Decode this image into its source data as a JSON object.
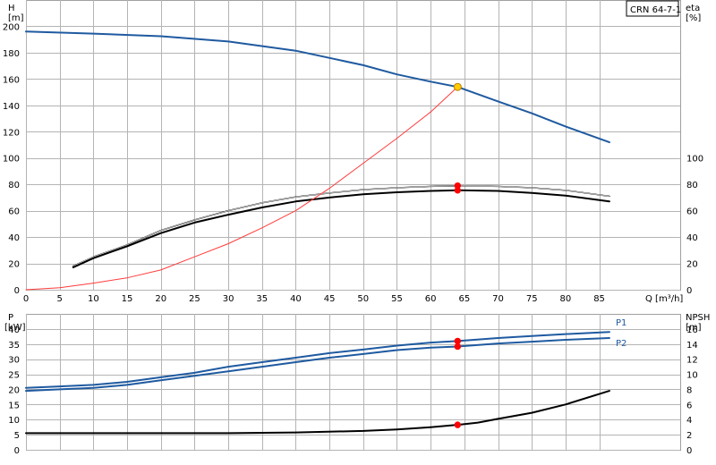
{
  "chart_data": [
    {
      "type": "line",
      "panel": "top",
      "model_label": "CRN 64-7-1",
      "left_axis": {
        "label": "H",
        "unit": "[m]",
        "range": [
          0,
          220
        ],
        "ticks": [
          0,
          20,
          40,
          60,
          80,
          100,
          120,
          140,
          160,
          180,
          200
        ]
      },
      "right_axis": {
        "label": "eta",
        "unit": "[%]",
        "range": [
          0,
          220
        ],
        "ticks": [
          0,
          20,
          40,
          60,
          80,
          100
        ]
      },
      "x_axis": {
        "label": "Q [m³/h]",
        "range": [
          0,
          97
        ],
        "ticks": [
          0,
          5,
          10,
          15,
          20,
          25,
          30,
          35,
          40,
          45,
          50,
          55,
          60,
          65,
          70,
          75,
          80,
          85
        ]
      },
      "grid": true,
      "series": [
        {
          "id": "head",
          "axis": "left",
          "color": "#1f5aa0",
          "x": [
            0,
            10,
            20,
            30,
            40,
            50,
            55,
            60,
            64,
            70,
            75,
            80,
            86.5
          ],
          "y": [
            196,
            194.5,
            192.5,
            188.5,
            181.5,
            170.5,
            163.5,
            158,
            154,
            143,
            134,
            124,
            112
          ]
        },
        {
          "id": "eta-1",
          "axis": "right",
          "color": "#000000",
          "x": [
            7,
            10,
            15,
            20,
            25,
            30,
            35,
            40,
            45,
            50,
            55,
            60,
            64,
            70,
            75,
            80,
            86.5
          ],
          "y": [
            18,
            25,
            34,
            45,
            53,
            60,
            66,
            70.5,
            73.5,
            76,
            77.5,
            78.5,
            79,
            78.5,
            77.5,
            75.5,
            71
          ]
        },
        {
          "id": "eta-2",
          "axis": "right",
          "color": "#000000",
          "x": [
            7,
            10,
            15,
            20,
            25,
            30,
            35,
            40,
            45,
            50,
            55,
            60,
            64,
            70,
            75,
            80,
            86.5
          ],
          "y": [
            17,
            24,
            33,
            43,
            51,
            57,
            62.5,
            67,
            70,
            72.5,
            74,
            75,
            75.5,
            75,
            73.5,
            71.5,
            67
          ]
        },
        {
          "id": "system-curve",
          "axis": "left",
          "color": "#ff3b3b",
          "x": [
            0,
            5,
            10,
            15,
            20,
            25,
            30,
            35,
            40,
            45,
            50,
            55,
            60,
            64
          ],
          "y": [
            0,
            1.5,
            5,
            9,
            15,
            25,
            35,
            47,
            60,
            77,
            96,
            115,
            135,
            154
          ]
        }
      ],
      "markers": [
        {
          "axis": "left",
          "x": 64,
          "y": 154,
          "color": "#ffcc00",
          "stroke": "#c08000"
        },
        {
          "axis": "right",
          "x": 64,
          "y": 79,
          "color": "#ff0000",
          "stroke": "#ff0000"
        },
        {
          "axis": "right",
          "x": 64,
          "y": 75.5,
          "color": "#ff0000",
          "stroke": "#ff0000"
        }
      ]
    },
    {
      "type": "line",
      "panel": "bottom",
      "left_axis": {
        "label": "P",
        "unit": "[kW]",
        "range": [
          0,
          45
        ],
        "ticks": [
          0,
          5,
          10,
          15,
          20,
          25,
          30,
          35,
          40
        ]
      },
      "right_axis": {
        "label": "NPSH",
        "unit": "[m]",
        "range": [
          0,
          18
        ],
        "ticks": [
          0,
          2,
          4,
          6,
          8,
          10,
          12,
          14,
          16
        ]
      },
      "x_axis": {
        "range": [
          0,
          97
        ],
        "ticks": [
          0,
          5,
          10,
          15,
          20,
          25,
          30,
          35,
          40,
          45,
          50,
          55,
          60,
          65,
          70,
          75,
          80,
          85
        ]
      },
      "grid": true,
      "series": [
        {
          "id": "P1",
          "name": "P1",
          "axis": "left",
          "color": "#1f5aa0",
          "x": [
            0,
            5,
            10,
            15,
            20,
            25,
            30,
            35,
            40,
            45,
            50,
            55,
            60,
            64,
            70,
            75,
            80,
            86.5
          ],
          "y": [
            20.5,
            21,
            21.5,
            22.5,
            24,
            25.5,
            27.5,
            29,
            30.5,
            32,
            33.2,
            34.5,
            35.5,
            36,
            37,
            37.7,
            38.3,
            39
          ]
        },
        {
          "id": "P2",
          "name": "P2",
          "axis": "left",
          "color": "#1f5aa0",
          "x": [
            0,
            5,
            10,
            15,
            20,
            25,
            30,
            35,
            40,
            45,
            50,
            55,
            60,
            64,
            70,
            75,
            80,
            86.5
          ],
          "y": [
            19.5,
            20,
            20.5,
            21.5,
            23,
            24.5,
            26,
            27.5,
            29,
            30.5,
            31.7,
            33,
            33.8,
            34.2,
            35.2,
            35.8,
            36.4,
            37
          ]
        },
        {
          "id": "npsh",
          "axis": "right",
          "color": "#000000",
          "x": [
            0,
            30,
            40,
            50,
            55,
            60,
            64,
            67,
            70,
            75,
            80,
            86.5
          ],
          "y": [
            2.2,
            2.2,
            2.3,
            2.5,
            2.7,
            3.0,
            3.3,
            3.6,
            4.1,
            4.9,
            6.0,
            7.8
          ]
        }
      ],
      "markers": [
        {
          "axis": "left",
          "x": 64,
          "y": 36,
          "color": "#ff0000",
          "stroke": "#ff0000"
        },
        {
          "axis": "left",
          "x": 64,
          "y": 34.2,
          "color": "#ff0000",
          "stroke": "#ff0000"
        },
        {
          "axis": "right",
          "x": 64,
          "y": 3.3,
          "color": "#ff0000",
          "stroke": "#ff0000"
        }
      ]
    }
  ]
}
